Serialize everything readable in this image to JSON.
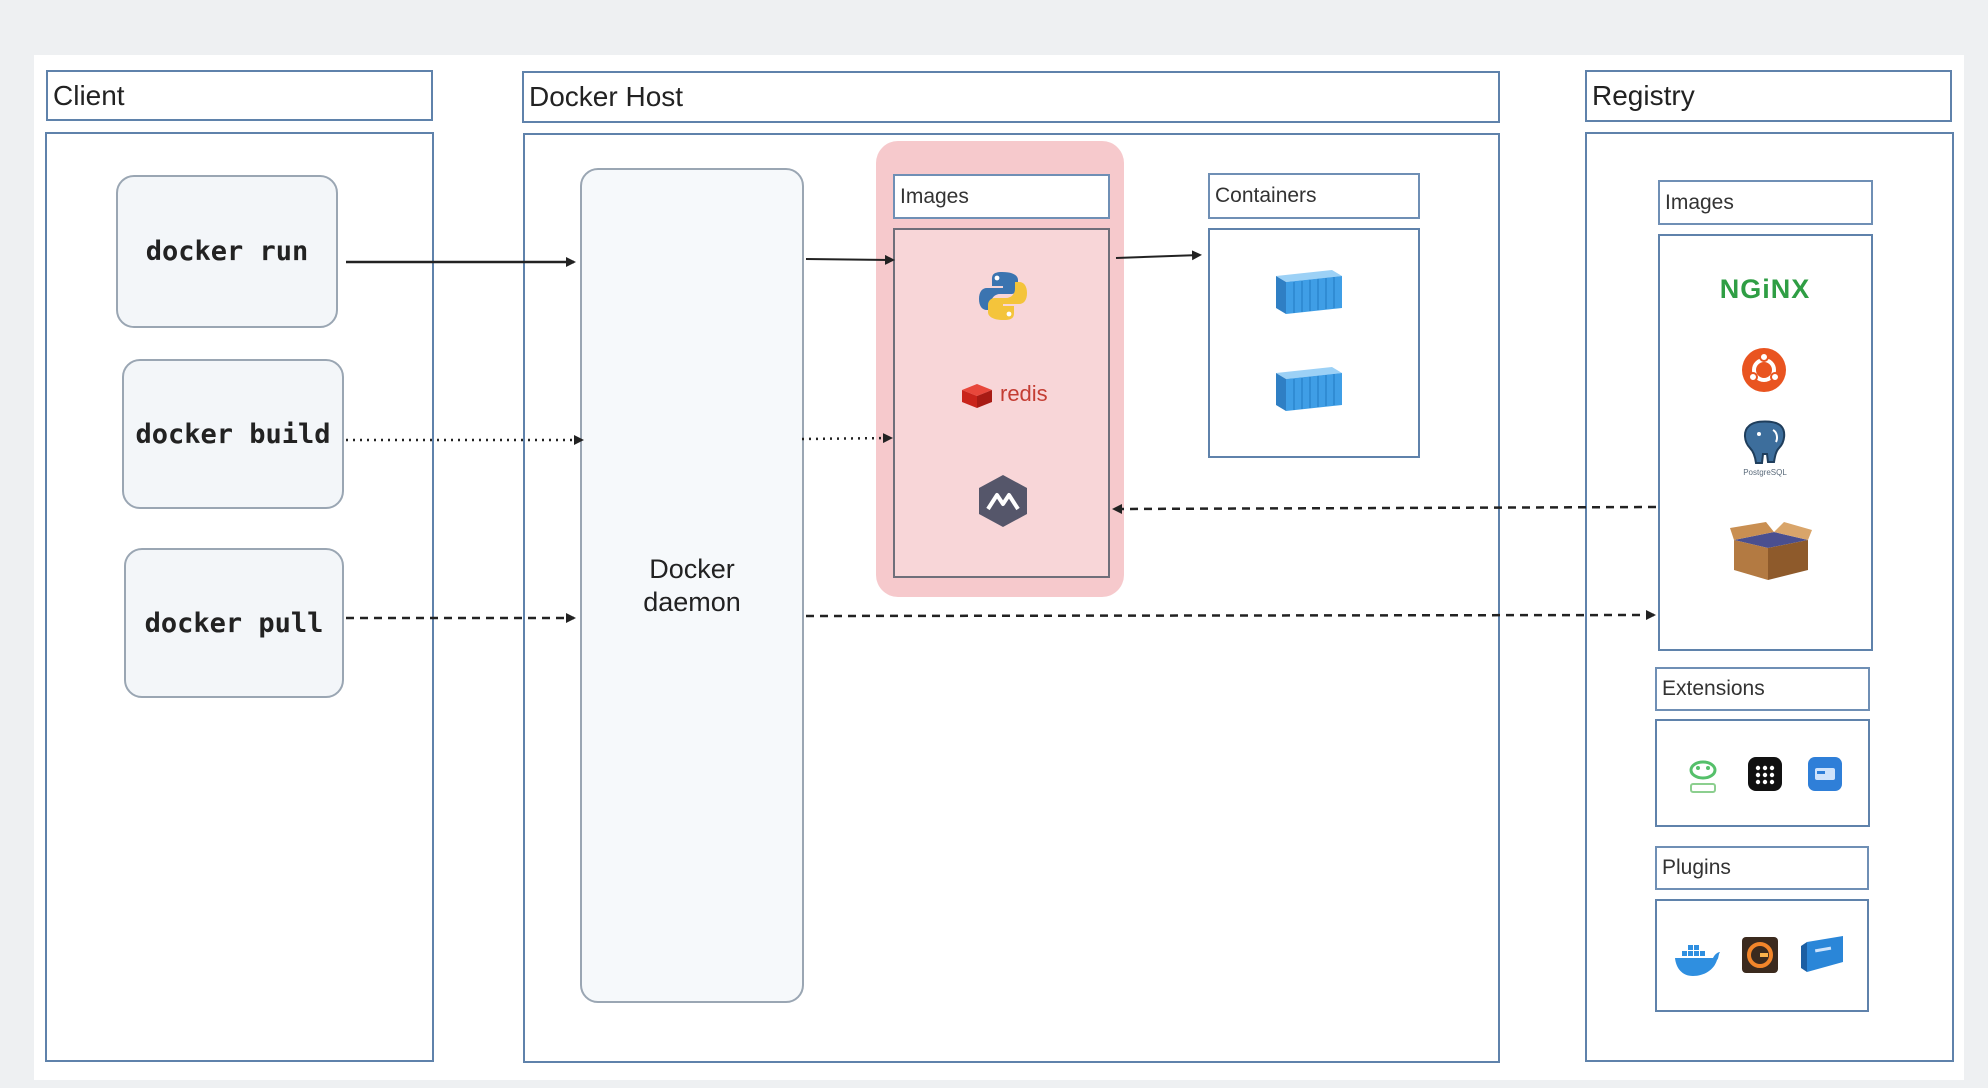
{
  "client": {
    "title": "Client",
    "commands": [
      {
        "label": "docker run"
      },
      {
        "label": "docker build"
      },
      {
        "label": "docker pull"
      }
    ]
  },
  "docker_host": {
    "title": "Docker Host",
    "daemon_line1": "Docker",
    "daemon_line2": "daemon",
    "images": {
      "title": "Images",
      "items": [
        "python-icon",
        "redis-icon",
        "mariner-icon"
      ],
      "redis_label": "redis"
    },
    "containers": {
      "title": "Containers",
      "items": [
        "container-icon",
        "container-icon"
      ]
    }
  },
  "registry": {
    "title": "Registry",
    "images": {
      "title": "Images",
      "nginx_label": "NGiNX",
      "postgres_label": "PostgreSQL",
      "items": [
        "nginx-logo",
        "ubuntu-logo",
        "postgresql-logo",
        "box-icon"
      ]
    },
    "extensions": {
      "title": "Extensions",
      "items": [
        "jfrog-icon",
        "grid-app-icon",
        "disk-icon"
      ]
    },
    "plugins": {
      "title": "Plugins",
      "items": [
        "docker-whale-icon",
        "grafana-icon",
        "storage-icon"
      ]
    }
  },
  "colors": {
    "frame": "#5f82ab",
    "images_group": "#f6c9cc",
    "container": "#3f9ee6",
    "nginx": "#2f9e44",
    "ubuntu": "#e95420",
    "redis": "#d82c20"
  }
}
